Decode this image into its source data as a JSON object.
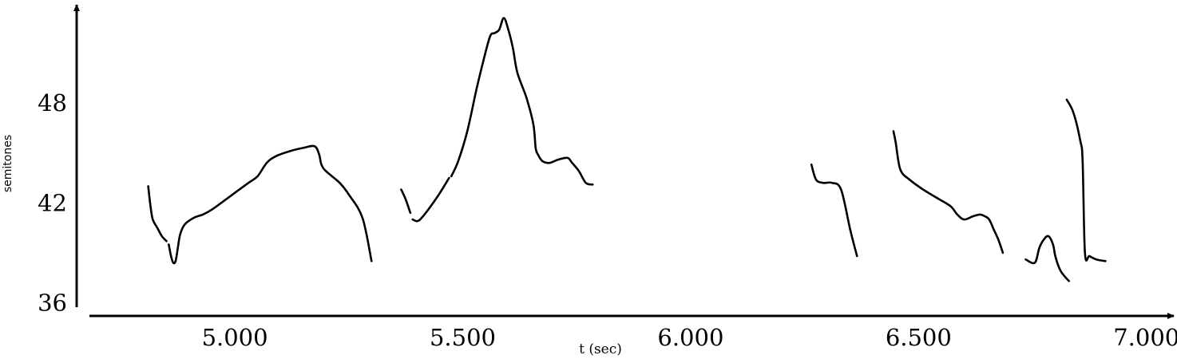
{
  "chart_data": {
    "type": "line",
    "title": "",
    "xlabel": "t (sec)",
    "ylabel": "semitones",
    "xlim": [
      4.66,
      7.06
    ],
    "ylim": [
      35.4,
      53.8
    ],
    "x_ticks": [
      5.0,
      5.5,
      6.0,
      6.5,
      7.0
    ],
    "x_tick_labels": [
      "5.000",
      "5.500",
      "6.000",
      "6.500",
      "7.000"
    ],
    "y_ticks": [
      36,
      42,
      48
    ],
    "y_tick_labels": [
      "36",
      "42",
      "48"
    ],
    "grid": false,
    "legend": "none",
    "segments": [
      {
        "x": [
          4.81,
          4.815,
          4.82,
          4.83,
          4.84,
          4.85
        ],
        "y": [
          43.0,
          41.8,
          41.0,
          40.5,
          40.0,
          39.7
        ]
      },
      {
        "x": [
          4.855,
          4.86,
          4.865,
          4.87,
          4.875,
          4.88,
          4.89,
          4.91,
          4.93,
          4.95,
          4.99,
          5.03,
          5.05,
          5.07,
          5.09,
          5.12,
          5.15,
          5.175,
          5.185,
          5.19,
          5.2,
          5.23,
          5.25,
          5.28,
          5.3
        ],
        "y": [
          39.5,
          38.8,
          38.4,
          38.5,
          39.3,
          40.1,
          40.7,
          41.1,
          41.3,
          41.6,
          42.4,
          43.2,
          43.6,
          44.4,
          44.8,
          45.1,
          45.3,
          45.4,
          44.9,
          44.3,
          43.9,
          43.2,
          42.5,
          41.1,
          38.5
        ]
      },
      {
        "x": [
          5.365,
          5.375,
          5.385
        ],
        "y": [
          42.8,
          42.2,
          41.4
        ]
      },
      {
        "x": [
          5.39,
          5.4,
          5.41,
          5.43,
          5.45,
          5.47
        ],
        "y": [
          41.0,
          40.9,
          41.1,
          41.8,
          42.6,
          43.5
        ]
      },
      {
        "x": [
          5.475,
          5.49,
          5.51,
          5.53,
          5.545,
          5.56,
          5.57,
          5.58,
          5.59,
          5.6,
          5.61,
          5.62,
          5.64,
          5.655,
          5.66,
          5.665,
          5.675,
          5.69,
          5.71,
          5.73,
          5.74,
          5.755,
          5.77,
          5.785
        ],
        "y": [
          43.6,
          44.5,
          46.3,
          48.8,
          50.5,
          52.0,
          52.2,
          52.4,
          53.1,
          52.4,
          51.3,
          49.8,
          48.3,
          46.7,
          45.3,
          44.9,
          44.5,
          44.4,
          44.6,
          44.7,
          44.4,
          43.9,
          43.2,
          43.1
        ]
      },
      {
        "x": [
          6.265,
          6.275,
          6.29,
          6.31,
          6.33,
          6.35,
          6.365
        ],
        "y": [
          44.3,
          43.4,
          43.2,
          43.2,
          42.8,
          40.4,
          38.8
        ]
      },
      {
        "x": [
          6.445,
          6.45,
          6.46,
          6.48,
          6.51,
          6.54,
          6.57,
          6.585,
          6.6,
          6.62,
          6.635,
          6.645,
          6.655,
          6.665,
          6.675,
          6.685
        ],
        "y": [
          46.3,
          45.6,
          44.0,
          43.4,
          42.8,
          42.3,
          41.8,
          41.3,
          41.0,
          41.2,
          41.3,
          41.2,
          41.0,
          40.4,
          39.8,
          39.0
        ]
      },
      {
        "x": [
          6.735,
          6.755,
          6.765,
          6.775,
          6.785,
          6.795,
          6.8,
          6.81,
          6.82,
          6.83
        ],
        "y": [
          38.6,
          38.4,
          39.3,
          39.8,
          40.0,
          39.5,
          38.8,
          38.0,
          37.6,
          37.3
        ]
      },
      {
        "x": [
          6.825,
          6.84,
          6.855,
          6.86,
          6.865,
          6.875,
          6.89,
          6.91
        ],
        "y": [
          48.2,
          47.4,
          45.7,
          44.5,
          39.0,
          38.8,
          38.6,
          38.5
        ]
      }
    ]
  }
}
